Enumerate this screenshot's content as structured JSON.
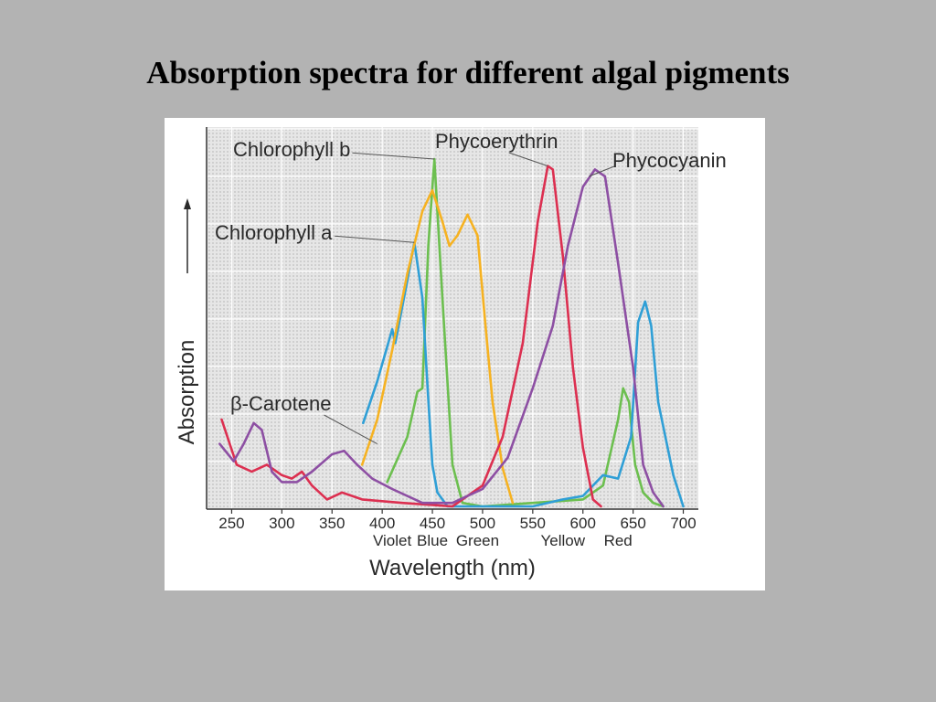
{
  "slide": {
    "title": "Absorption spectra for different algal pigments"
  },
  "chart_data": {
    "type": "line",
    "xlabel": "Wavelength (nm)",
    "ylabel": "Absorption",
    "xlim": [
      225,
      715
    ],
    "ylim": [
      0,
      1
    ],
    "x_ticks": [
      250,
      300,
      350,
      400,
      450,
      500,
      550,
      600,
      650,
      700
    ],
    "color_bands": [
      {
        "label": "Violet",
        "x": 410
      },
      {
        "label": "Blue",
        "x": 450
      },
      {
        "label": "Green",
        "x": 495
      },
      {
        "label": "Yellow",
        "x": 580
      },
      {
        "label": "Red",
        "x": 635
      }
    ],
    "grid": true,
    "series": [
      {
        "name": "Chlorophyll b",
        "color": "#6cbf4f",
        "points": [
          [
            405,
            0.07
          ],
          [
            425,
            0.2
          ],
          [
            435,
            0.33
          ],
          [
            440,
            0.34
          ],
          [
            446,
            0.75
          ],
          [
            452,
            1.0
          ],
          [
            460,
            0.6
          ],
          [
            470,
            0.12
          ],
          [
            480,
            0.01
          ],
          [
            500,
            0.0
          ],
          [
            550,
            0.01
          ],
          [
            600,
            0.02
          ],
          [
            620,
            0.06
          ],
          [
            635,
            0.25
          ],
          [
            640,
            0.34
          ],
          [
            646,
            0.3
          ],
          [
            652,
            0.12
          ],
          [
            660,
            0.04
          ],
          [
            670,
            0.01
          ],
          [
            680,
            0.0
          ]
        ],
        "label_x": 440,
        "label_y": 1.02
      },
      {
        "name": "Chlorophyll a",
        "color": "#2f9fd6",
        "points": [
          [
            381,
            0.24
          ],
          [
            395,
            0.36
          ],
          [
            410,
            0.51
          ],
          [
            413,
            0.47
          ],
          [
            425,
            0.65
          ],
          [
            432,
            0.76
          ],
          [
            440,
            0.6
          ],
          [
            445,
            0.35
          ],
          [
            450,
            0.12
          ],
          [
            455,
            0.04
          ],
          [
            465,
            0.0
          ],
          [
            500,
            0.0
          ],
          [
            550,
            0.0
          ],
          [
            580,
            0.02
          ],
          [
            600,
            0.03
          ],
          [
            620,
            0.09
          ],
          [
            635,
            0.08
          ],
          [
            648,
            0.2
          ],
          [
            655,
            0.53
          ],
          [
            662,
            0.59
          ],
          [
            668,
            0.52
          ],
          [
            675,
            0.3
          ],
          [
            690,
            0.09
          ],
          [
            700,
            0.0
          ]
        ],
        "label_x": 418,
        "label_y": 0.76
      },
      {
        "name": "β-Carotene",
        "color": "#f6b221",
        "points": [
          [
            380,
            0.12
          ],
          [
            395,
            0.25
          ],
          [
            410,
            0.45
          ],
          [
            425,
            0.67
          ],
          [
            440,
            0.85
          ],
          [
            450,
            0.91
          ],
          [
            460,
            0.82
          ],
          [
            467,
            0.75
          ],
          [
            475,
            0.78
          ],
          [
            485,
            0.84
          ],
          [
            495,
            0.78
          ],
          [
            502,
            0.55
          ],
          [
            510,
            0.3
          ],
          [
            520,
            0.11
          ],
          [
            530,
            0.01
          ]
        ],
        "label_x": 375,
        "label_y": 0.3
      },
      {
        "name": "Phycoerythrin",
        "color": "#dc2f50",
        "points": [
          [
            240,
            0.25
          ],
          [
            255,
            0.12
          ],
          [
            270,
            0.1
          ],
          [
            285,
            0.12
          ],
          [
            300,
            0.09
          ],
          [
            310,
            0.08
          ],
          [
            320,
            0.1
          ],
          [
            330,
            0.06
          ],
          [
            345,
            0.02
          ],
          [
            360,
            0.04
          ],
          [
            380,
            0.02
          ],
          [
            420,
            0.01
          ],
          [
            470,
            0.0
          ],
          [
            500,
            0.06
          ],
          [
            520,
            0.2
          ],
          [
            540,
            0.47
          ],
          [
            555,
            0.82
          ],
          [
            565,
            0.98
          ],
          [
            570,
            0.97
          ],
          [
            580,
            0.72
          ],
          [
            590,
            0.4
          ],
          [
            600,
            0.17
          ],
          [
            610,
            0.02
          ],
          [
            618,
            0.0
          ]
        ],
        "label_x": 540,
        "label_y": 1.02
      },
      {
        "name": "Phycocyanin",
        "color": "#8d4fa3",
        "points": [
          [
            238,
            0.18
          ],
          [
            252,
            0.13
          ],
          [
            262,
            0.18
          ],
          [
            272,
            0.24
          ],
          [
            280,
            0.22
          ],
          [
            290,
            0.1
          ],
          [
            300,
            0.07
          ],
          [
            315,
            0.07
          ],
          [
            330,
            0.1
          ],
          [
            350,
            0.15
          ],
          [
            362,
            0.16
          ],
          [
            375,
            0.12
          ],
          [
            390,
            0.08
          ],
          [
            410,
            0.05
          ],
          [
            440,
            0.01
          ],
          [
            470,
            0.01
          ],
          [
            500,
            0.05
          ],
          [
            525,
            0.14
          ],
          [
            550,
            0.34
          ],
          [
            570,
            0.52
          ],
          [
            585,
            0.75
          ],
          [
            600,
            0.92
          ],
          [
            612,
            0.97
          ],
          [
            622,
            0.95
          ],
          [
            635,
            0.7
          ],
          [
            650,
            0.4
          ],
          [
            660,
            0.12
          ],
          [
            670,
            0.04
          ],
          [
            680,
            0.0
          ]
        ],
        "label_x": 598,
        "label_y": 0.98
      }
    ]
  }
}
